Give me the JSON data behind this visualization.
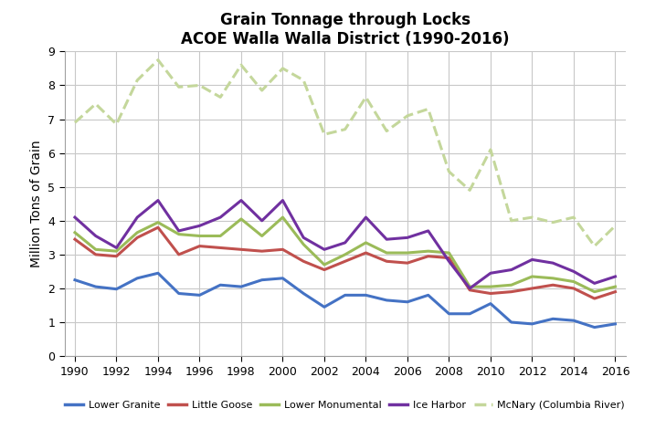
{
  "title_line1": "Grain Tonnage through Locks",
  "title_line2": "ACOE Walla Walla District (1990-2016)",
  "ylabel": "Million Tons of Grain",
  "years": [
    1990,
    1991,
    1992,
    1993,
    1994,
    1995,
    1996,
    1997,
    1998,
    1999,
    2000,
    2001,
    2002,
    2003,
    2004,
    2005,
    2006,
    2007,
    2008,
    2009,
    2010,
    2011,
    2012,
    2013,
    2014,
    2015,
    2016
  ],
  "series": {
    "Lower Granite": {
      "values": [
        2.25,
        2.05,
        1.98,
        2.3,
        2.45,
        1.85,
        1.8,
        2.1,
        2.05,
        2.25,
        2.3,
        1.85,
        1.45,
        1.8,
        1.8,
        1.65,
        1.6,
        1.8,
        1.25,
        1.25,
        1.55,
        1.0,
        0.95,
        1.1,
        1.05,
        0.85,
        0.95
      ],
      "color": "#4472C4",
      "linestyle": "solid",
      "linewidth": 2.2
    },
    "Little Goose": {
      "values": [
        3.45,
        3.0,
        2.95,
        3.5,
        3.8,
        3.0,
        3.25,
        3.2,
        3.15,
        3.1,
        3.15,
        2.8,
        2.55,
        2.8,
        3.05,
        2.8,
        2.75,
        2.95,
        2.9,
        1.95,
        1.85,
        1.9,
        2.0,
        2.1,
        2.0,
        1.7,
        1.9
      ],
      "color": "#C0504D",
      "linestyle": "solid",
      "linewidth": 2.2
    },
    "Lower Monumental": {
      "values": [
        3.65,
        3.15,
        3.1,
        3.65,
        3.95,
        3.6,
        3.55,
        3.55,
        4.05,
        3.55,
        4.1,
        3.3,
        2.7,
        3.0,
        3.35,
        3.05,
        3.05,
        3.1,
        3.05,
        2.05,
        2.05,
        2.1,
        2.35,
        2.3,
        2.2,
        1.9,
        2.05
      ],
      "color": "#9BBB59",
      "linestyle": "solid",
      "linewidth": 2.2
    },
    "Ice Harbor": {
      "values": [
        4.1,
        3.55,
        3.2,
        4.1,
        4.6,
        3.7,
        3.85,
        4.1,
        4.6,
        4.0,
        4.6,
        3.5,
        3.15,
        3.35,
        4.1,
        3.45,
        3.5,
        3.7,
        2.8,
        2.0,
        2.45,
        2.55,
        2.85,
        2.75,
        2.5,
        2.15,
        2.35
      ],
      "color": "#7030A0",
      "linestyle": "solid",
      "linewidth": 2.2
    },
    "McNary (Columbia River)": {
      "values": [
        6.9,
        7.45,
        6.85,
        8.15,
        8.75,
        7.95,
        8.0,
        7.65,
        8.6,
        7.85,
        8.5,
        8.15,
        6.55,
        6.7,
        7.65,
        6.65,
        7.1,
        7.3,
        5.45,
        4.9,
        6.1,
        4.0,
        4.1,
        3.95,
        4.1,
        3.25,
        3.85
      ],
      "color": "#C4D79B",
      "linestyle": "dashed",
      "linewidth": 2.2
    }
  },
  "ylim": [
    0,
    9
  ],
  "yticks": [
    0,
    1,
    2,
    3,
    4,
    5,
    6,
    7,
    8,
    9
  ],
  "xticks": [
    1990,
    1992,
    1994,
    1996,
    1998,
    2000,
    2002,
    2004,
    2006,
    2008,
    2010,
    2012,
    2014,
    2016
  ],
  "grid_color": "#C8C8C8",
  "background_color": "#FFFFFF",
  "legend_order": [
    "Lower Granite",
    "Little Goose",
    "Lower Monumental",
    "Ice Harbor",
    "McNary (Columbia River)"
  ]
}
